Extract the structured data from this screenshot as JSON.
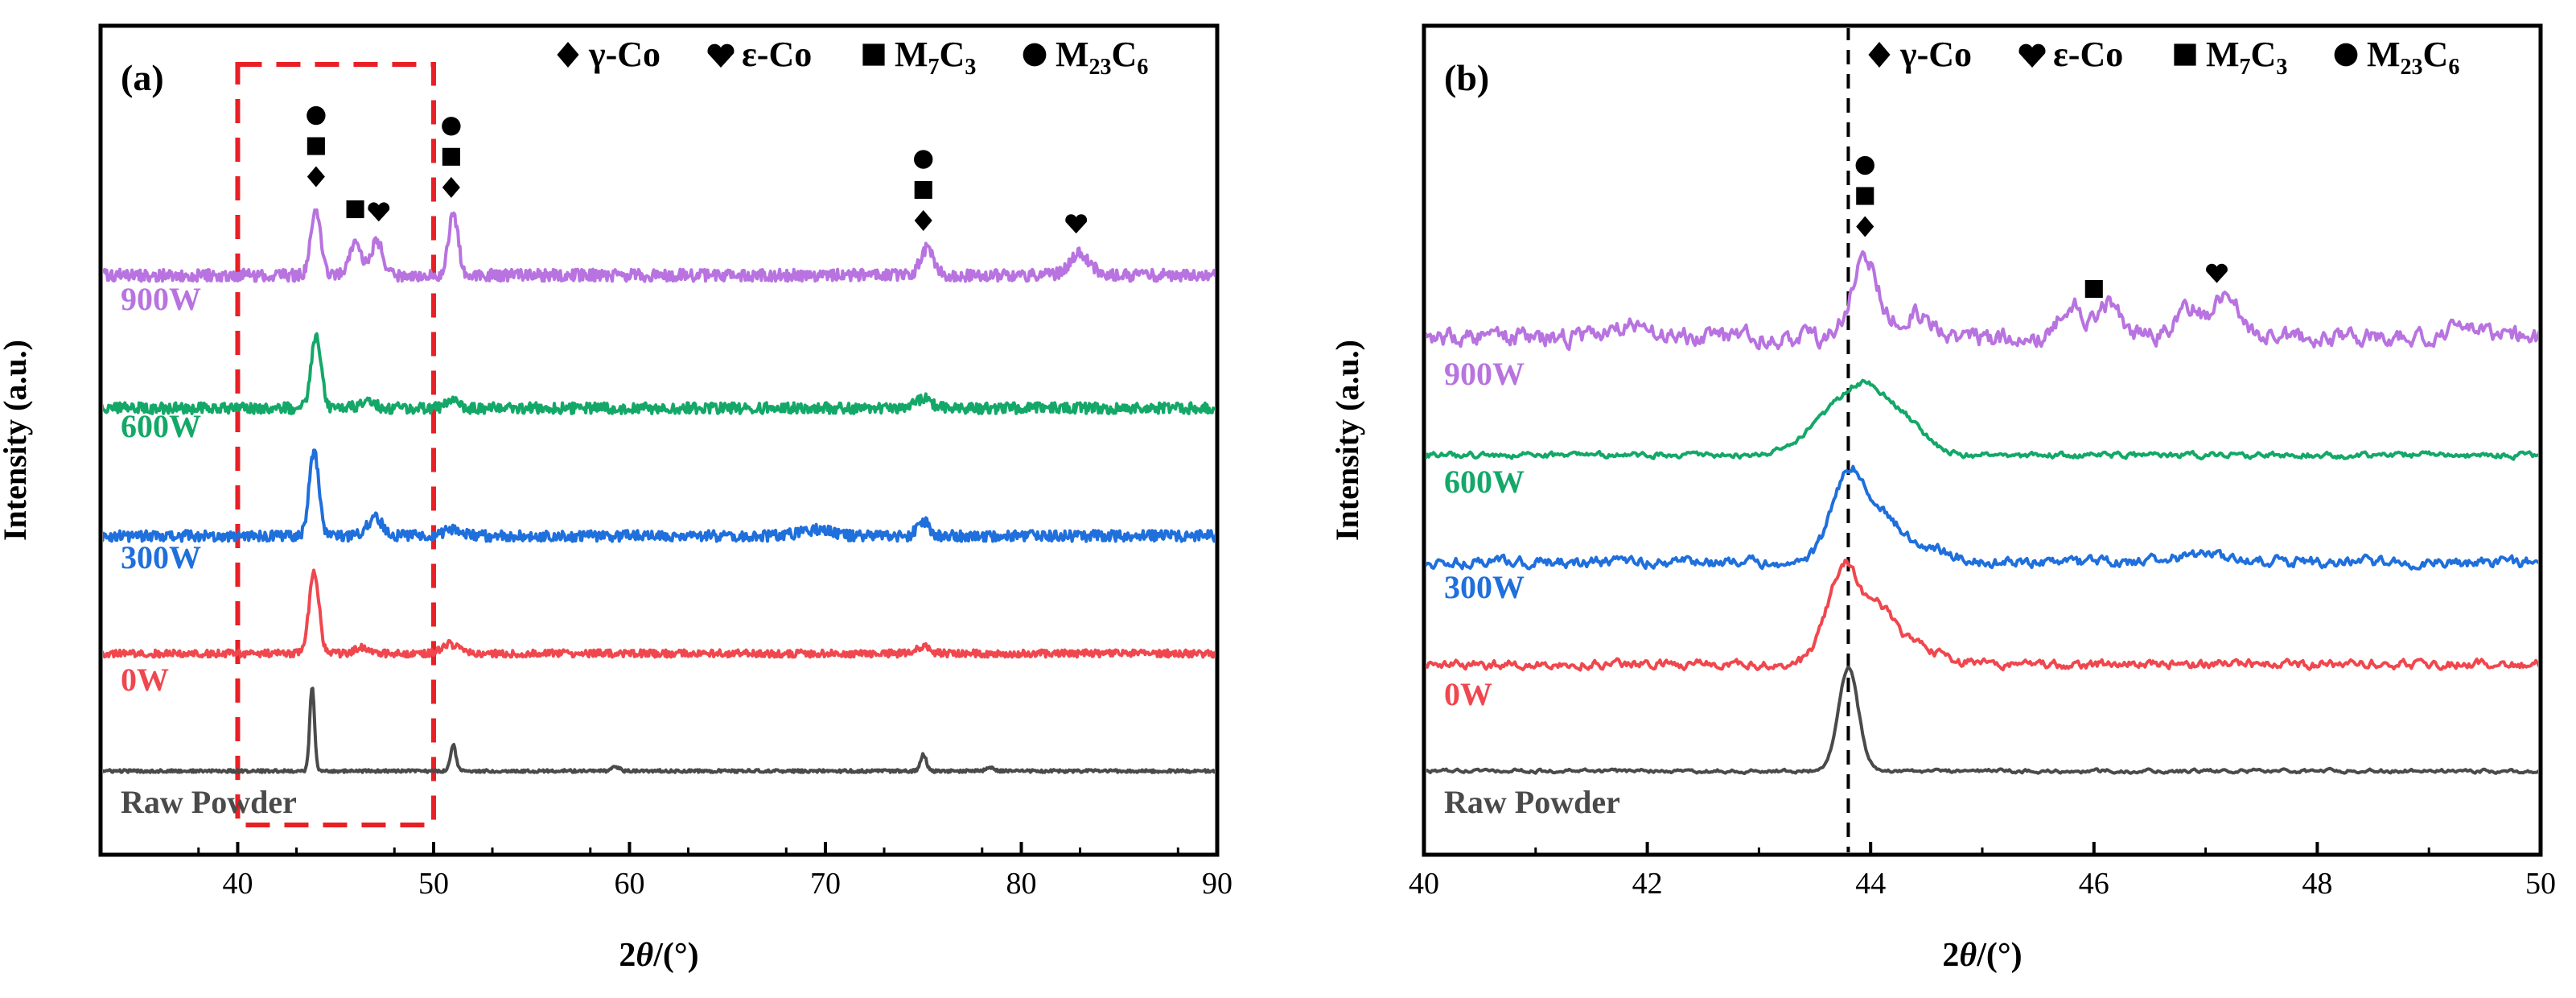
{
  "figure": {
    "panel_a_label": "(a)",
    "panel_b_label": "(b)",
    "xlabel_prefix": "2",
    "xlabel_theta": "θ",
    "xlabel_suffix": "/(°)",
    "ylabel": "Intensity (a.u.)",
    "legend": [
      {
        "symbol": "diamond",
        "name": "γ-Co"
      },
      {
        "symbol": "heart",
        "name": "ε-Co"
      },
      {
        "symbol": "square",
        "name": "M7C3",
        "base": "M",
        "sub1": "7",
        "mid": "C",
        "sub2": "3"
      },
      {
        "symbol": "circle",
        "name": "M23C6",
        "base": "M",
        "sub1": "23",
        "mid": "C",
        "sub2": "6"
      }
    ]
  },
  "chart_data": [
    {
      "panel": "a",
      "type": "line",
      "title": "",
      "xlabel": "2θ/(°)",
      "ylabel": "Intensity (a.u.)",
      "xlim": [
        33,
        90
      ],
      "xticks": [
        40,
        50,
        60,
        70,
        80,
        90
      ],
      "xtick_labels": [
        "40",
        "50",
        "60",
        "70",
        "80",
        "90"
      ],
      "y_ticks": "none",
      "highlight_box": {
        "x_range": [
          40,
          50
        ],
        "color": "#e81f25",
        "style": "dashed"
      },
      "series": [
        {
          "name": "Raw Powder",
          "label": "Raw Powder",
          "color": "#4a4a4a",
          "offset": 0.0,
          "noise": 0.012,
          "peaks": [
            [
              43.8,
              0.7,
              0.12
            ],
            [
              51.0,
              0.22,
              0.14
            ],
            [
              59.3,
              0.03,
              0.2
            ],
            [
              75.0,
              0.14,
              0.15
            ],
            [
              78.4,
              0.03,
              0.2
            ]
          ]
        },
        {
          "name": "0W",
          "label": "0W",
          "color": "#f0474e",
          "offset": 1.15,
          "noise": 0.03,
          "peaks": [
            [
              43.9,
              0.68,
              0.25
            ],
            [
              46.4,
              0.05,
              0.4
            ],
            [
              50.8,
              0.08,
              0.4
            ],
            [
              75.0,
              0.06,
              0.3
            ]
          ]
        },
        {
          "name": "300W",
          "label": "300W",
          "color": "#1f6fdc",
          "offset": 2.3,
          "noise": 0.045,
          "peaks": [
            [
              43.9,
              0.7,
              0.25
            ],
            [
              47.0,
              0.15,
              0.4
            ],
            [
              51.0,
              0.06,
              0.4
            ],
            [
              69.5,
              0.05,
              0.8
            ],
            [
              75.0,
              0.12,
              0.3
            ]
          ]
        },
        {
          "name": "600W",
          "label": "600W",
          "color": "#14a868",
          "offset": 3.55,
          "noise": 0.045,
          "peaks": [
            [
              44.0,
              0.6,
              0.25
            ],
            [
              46.6,
              0.05,
              0.4
            ],
            [
              51.0,
              0.08,
              0.3
            ],
            [
              75.0,
              0.08,
              0.4
            ]
          ]
        },
        {
          "name": "900W",
          "label": "900W",
          "color": "#b873e0",
          "offset": 4.85,
          "noise": 0.05,
          "peaks": [
            [
              44.0,
              0.55,
              0.25
            ],
            [
              46.0,
              0.28,
              0.3
            ],
            [
              47.1,
              0.28,
              0.3
            ],
            [
              51.0,
              0.5,
              0.25
            ],
            [
              75.2,
              0.22,
              0.35
            ],
            [
              83.0,
              0.18,
              0.5
            ]
          ]
        }
      ],
      "phase_markers": [
        {
          "x": 44.0,
          "symbols": [
            "circle",
            "square",
            "diamond"
          ]
        },
        {
          "x": 46.0,
          "symbols": [
            "square"
          ]
        },
        {
          "x": 47.2,
          "symbols": [
            "heart"
          ]
        },
        {
          "x": 50.9,
          "symbols": [
            "circle",
            "square",
            "diamond"
          ]
        },
        {
          "x": 75.0,
          "symbols": [
            "circle",
            "square",
            "diamond"
          ]
        },
        {
          "x": 82.8,
          "symbols": [
            "heart"
          ]
        }
      ]
    },
    {
      "panel": "b",
      "type": "line",
      "title": "",
      "xlabel": "2θ/(°)",
      "ylabel": "Intensity (a.u.)",
      "xlim": [
        40,
        50
      ],
      "xticks": [
        40,
        42,
        44,
        46,
        48,
        50
      ],
      "xtick_labels": [
        "40",
        "42",
        "44",
        "46",
        "48",
        "50"
      ],
      "y_ticks": "none",
      "reference_line": {
        "x": 43.8,
        "color": "#000000",
        "style": "dashed"
      },
      "series": [
        {
          "name": "Raw Powder",
          "label": "Raw Powder",
          "color": "#4a4a4a",
          "offset": 0.0,
          "noise": 0.012,
          "peaks": [
            [
              43.8,
              0.85,
              0.09
            ]
          ]
        },
        {
          "name": "0W",
          "label": "0W",
          "color": "#f0474e",
          "offset": 1.0,
          "noise": 0.03,
          "peaks": [
            [
              43.65,
              0.4,
              0.12
            ],
            [
              43.8,
              0.55,
              0.1
            ],
            [
              44.05,
              0.45,
              0.15
            ],
            [
              44.4,
              0.15,
              0.2
            ]
          ]
        },
        {
          "name": "300W",
          "label": "300W",
          "color": "#1f6fdc",
          "offset": 1.95,
          "noise": 0.035,
          "peaks": [
            [
              43.7,
              0.4,
              0.12
            ],
            [
              43.85,
              0.5,
              0.1
            ],
            [
              44.1,
              0.4,
              0.15
            ],
            [
              44.5,
              0.12,
              0.2
            ],
            [
              47.0,
              0.06,
              0.3
            ]
          ]
        },
        {
          "name": "600W",
          "label": "600W",
          "color": "#14a868",
          "offset": 2.95,
          "noise": 0.02,
          "peaks": [
            [
              43.9,
              0.55,
              0.22
            ],
            [
              44.3,
              0.25,
              0.2
            ],
            [
              43.5,
              0.15,
              0.2
            ]
          ]
        },
        {
          "name": "900W",
          "label": "900W",
          "color": "#b873e0",
          "offset": 4.05,
          "noise": 0.06,
          "peaks": [
            [
              43.95,
              0.65,
              0.12
            ],
            [
              44.4,
              0.2,
              0.15
            ],
            [
              45.8,
              0.28,
              0.1
            ],
            [
              46.15,
              0.3,
              0.1
            ],
            [
              46.85,
              0.25,
              0.12
            ],
            [
              47.2,
              0.4,
              0.1
            ],
            [
              41.8,
              0.1,
              0.15
            ],
            [
              49.3,
              0.08,
              0.15
            ]
          ]
        }
      ],
      "phase_markers": [
        {
          "x": 43.95,
          "symbols": [
            "circle",
            "square",
            "diamond"
          ]
        },
        {
          "x": 46.0,
          "symbols": [
            "square"
          ]
        },
        {
          "x": 47.1,
          "symbols": [
            "heart"
          ]
        }
      ]
    }
  ]
}
